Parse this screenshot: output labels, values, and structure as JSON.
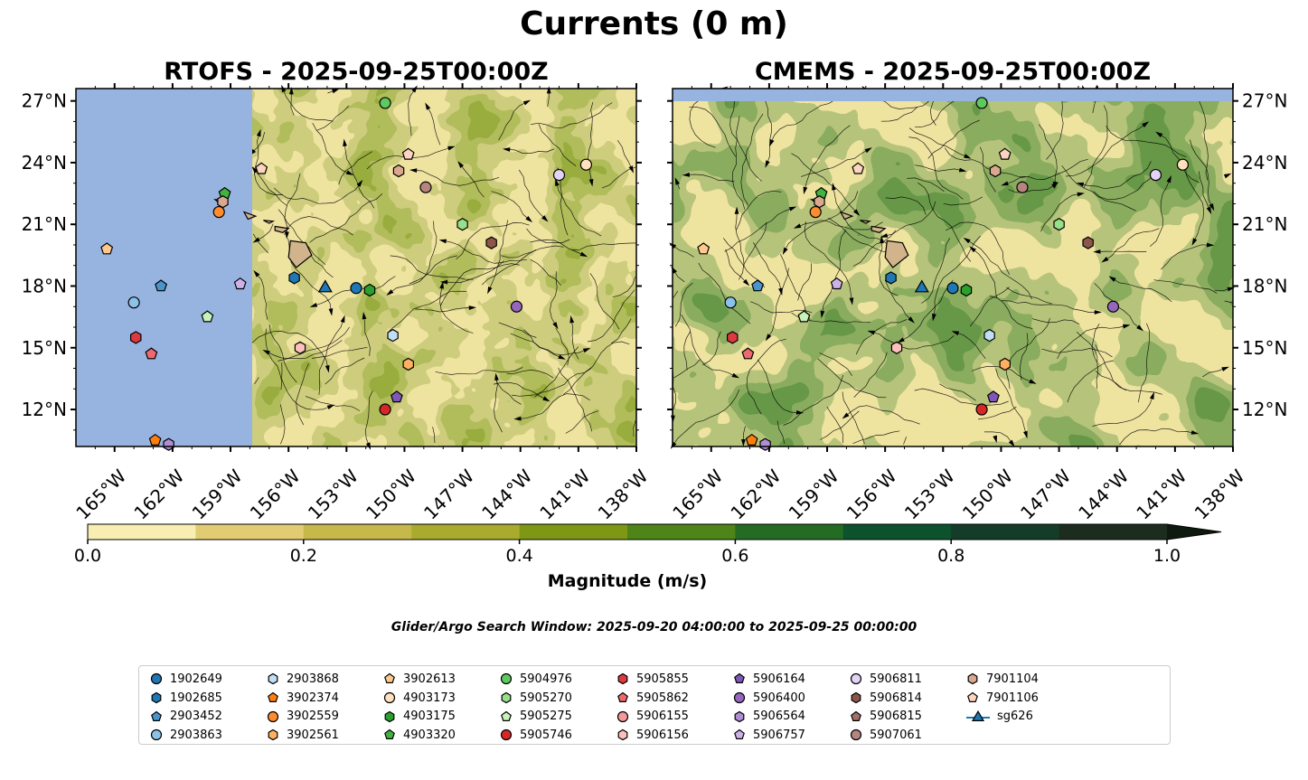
{
  "title": "Currents (0 m)",
  "panels": [
    {
      "name": "rtofs",
      "title": "RTOFS - 2025-09-25T00:00Z"
    },
    {
      "name": "cmems",
      "title": "CMEMS - 2025-09-25T00:00Z"
    }
  ],
  "axes": {
    "lon_range": [
      -167,
      -138
    ],
    "lat_range": [
      10.2,
      27.6
    ],
    "lat_ticks": [
      {
        "value": 27,
        "label": "27°N"
      },
      {
        "value": 24,
        "label": "24°N"
      },
      {
        "value": 21,
        "label": "21°N"
      },
      {
        "value": 18,
        "label": "18°N"
      },
      {
        "value": 15,
        "label": "15°N"
      },
      {
        "value": 12,
        "label": "12°N"
      }
    ],
    "lon_ticks": [
      {
        "value": -165,
        "label": "165°W"
      },
      {
        "value": -162,
        "label": "162°W"
      },
      {
        "value": -159,
        "label": "159°W"
      },
      {
        "value": -156,
        "label": "156°W"
      },
      {
        "value": -153,
        "label": "153°W"
      },
      {
        "value": -150,
        "label": "150°W"
      },
      {
        "value": -147,
        "label": "147°W"
      },
      {
        "value": -144,
        "label": "144°W"
      },
      {
        "value": -141,
        "label": "141°W"
      },
      {
        "value": -138,
        "label": "138°W"
      }
    ]
  },
  "colorbar": {
    "label": "Magnitude (m/s)",
    "range": [
      0,
      1.0
    ],
    "extend": "max",
    "ticks": [
      {
        "value": 0,
        "label": "0.0"
      },
      {
        "value": 0.2,
        "label": "0.2"
      },
      {
        "value": 0.4,
        "label": "0.4"
      },
      {
        "value": 0.6,
        "label": "0.6"
      },
      {
        "value": 0.8,
        "label": "0.8"
      },
      {
        "value": 1.0,
        "label": "1.0"
      }
    ],
    "colors": [
      "#f8eeb2",
      "#e1cc74",
      "#c6b84a",
      "#a8ab2d",
      "#7e9816",
      "#4f8419",
      "#246b24",
      "#0c522d",
      "#153c28",
      "#1c2c1e"
    ],
    "extend_color": "#0e1a10"
  },
  "colors": {
    "land": "#d1b48c",
    "outside_model": "#97b3e0",
    "island_land": "#d1b48c"
  },
  "search_window": "Glider/Argo Search Window: 2025-09-20 04:00:00 to 2025-09-25 00:00:00",
  "legend": [
    {
      "id": "1902649",
      "marker": "circle",
      "color": "#1f77b4"
    },
    {
      "id": "1902685",
      "marker": "hexagon",
      "color": "#1f77b4"
    },
    {
      "id": "2903452",
      "marker": "pentagon",
      "color": "#4a94cc"
    },
    {
      "id": "2903863",
      "marker": "circle",
      "color": "#8cc2e8"
    },
    {
      "id": "2903868",
      "marker": "hexagon",
      "color": "#c0dff5"
    },
    {
      "id": "3902374",
      "marker": "pentagon",
      "color": "#ff7f0e"
    },
    {
      "id": "3902559",
      "marker": "circle",
      "color": "#ff8c2e"
    },
    {
      "id": "3902561",
      "marker": "hexagon",
      "color": "#ffb060"
    },
    {
      "id": "3902613",
      "marker": "pentagon",
      "color": "#ffc98e"
    },
    {
      "id": "4903173",
      "marker": "circle",
      "color": "#ffe1bd"
    },
    {
      "id": "4903175",
      "marker": "hexagon",
      "color": "#2ca02c"
    },
    {
      "id": "4903320",
      "marker": "pentagon",
      "color": "#3fb53f"
    },
    {
      "id": "5904976",
      "marker": "circle",
      "color": "#5ec95e"
    },
    {
      "id": "5905270",
      "marker": "hexagon",
      "color": "#98df8a"
    },
    {
      "id": "5905275",
      "marker": "pentagon",
      "color": "#c8f2bc"
    },
    {
      "id": "5905746",
      "marker": "circle",
      "color": "#d62728"
    },
    {
      "id": "5905855",
      "marker": "hexagon",
      "color": "#dc3a40"
    },
    {
      "id": "5905862",
      "marker": "pentagon",
      "color": "#ec6a6e"
    },
    {
      "id": "5906155",
      "marker": "circle",
      "color": "#f59a98"
    },
    {
      "id": "5906156",
      "marker": "hexagon",
      "color": "#fcc0bc"
    },
    {
      "id": "5906164",
      "marker": "pentagon",
      "color": "#7e57b8"
    },
    {
      "id": "5906400",
      "marker": "circle",
      "color": "#9467bd"
    },
    {
      "id": "5906564",
      "marker": "hexagon",
      "color": "#b08ed4"
    },
    {
      "id": "5906757",
      "marker": "pentagon",
      "color": "#cdb2e8"
    },
    {
      "id": "5906811",
      "marker": "circle",
      "color": "#e3d3f7"
    },
    {
      "id": "5906814",
      "marker": "hexagon",
      "color": "#8c564b"
    },
    {
      "id": "5906815",
      "marker": "pentagon",
      "color": "#a2706a"
    },
    {
      "id": "5907061",
      "marker": "circle",
      "color": "#b5857e"
    },
    {
      "id": "7901104",
      "marker": "hexagon",
      "color": "#d9a88f"
    },
    {
      "id": "7901106",
      "marker": "pentagon",
      "color": "#fcd4c0"
    },
    {
      "id": "sg626",
      "marker": "triangle-line",
      "color": "#1f77b4"
    }
  ],
  "floats": [
    {
      "id": "5904976",
      "lon": -151.0,
      "lat": 26.9
    },
    {
      "id": "7901106",
      "lon": -157.4,
      "lat": 23.7
    },
    {
      "id": "7901106",
      "lon": -149.8,
      "lat": 24.4
    },
    {
      "id": "7901104",
      "lon": -150.3,
      "lat": 23.6
    },
    {
      "id": "5907061",
      "lon": -148.9,
      "lat": 22.8
    },
    {
      "id": "4903173",
      "lon": -140.6,
      "lat": 23.9
    },
    {
      "id": "5906811",
      "lon": -142.0,
      "lat": 23.4
    },
    {
      "id": "4903320",
      "lon": -159.3,
      "lat": 22.5
    },
    {
      "id": "7901104",
      "lon": -159.4,
      "lat": 22.1
    },
    {
      "id": "3902559",
      "lon": -159.6,
      "lat": 21.6
    },
    {
      "id": "5905270",
      "lon": -147.0,
      "lat": 21.0
    },
    {
      "id": "5906814",
      "lon": -145.5,
      "lat": 20.1
    },
    {
      "id": "3902613",
      "lon": -165.4,
      "lat": 19.8
    },
    {
      "id": "2903452",
      "lon": -162.6,
      "lat": 18.0
    },
    {
      "id": "5906757",
      "lon": -158.5,
      "lat": 18.1
    },
    {
      "id": "1902685",
      "lon": -155.7,
      "lat": 18.4
    },
    {
      "id": "sg626",
      "lon": -154.1,
      "lat": 17.9
    },
    {
      "id": "1902649",
      "lon": -152.5,
      "lat": 17.9
    },
    {
      "id": "4903175",
      "lon": -151.8,
      "lat": 17.8
    },
    {
      "id": "2903863",
      "lon": -164.0,
      "lat": 17.2
    },
    {
      "id": "5906400",
      "lon": -144.2,
      "lat": 17.0
    },
    {
      "id": "5905275",
      "lon": -160.2,
      "lat": 16.5
    },
    {
      "id": "2903868",
      "lon": -150.6,
      "lat": 15.6
    },
    {
      "id": "5905855",
      "lon": -163.9,
      "lat": 15.5
    },
    {
      "id": "5906156",
      "lon": -155.4,
      "lat": 15.0
    },
    {
      "id": "5905862",
      "lon": -163.1,
      "lat": 14.7
    },
    {
      "id": "3902561",
      "lon": -149.8,
      "lat": 14.2
    },
    {
      "id": "5906164",
      "lon": -150.4,
      "lat": 12.6
    },
    {
      "id": "5905746",
      "lon": -151.0,
      "lat": 12.0
    },
    {
      "id": "3902374",
      "lon": -162.9,
      "lat": 10.5
    },
    {
      "id": "5906564",
      "lon": -162.2,
      "lat": 10.3
    }
  ]
}
